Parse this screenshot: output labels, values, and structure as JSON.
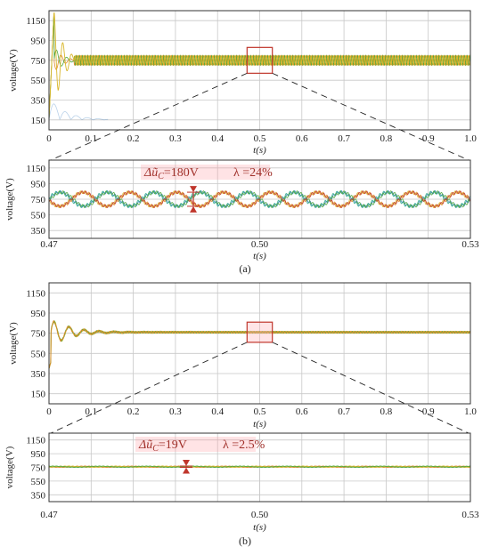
{
  "colors": {
    "green": "#4fa83a",
    "yellow": "#d9b72c",
    "orange": "#e08a2a",
    "blue": "#3a7fc0",
    "teal": "#2aa88a",
    "pink": "#ff9aa0",
    "red": "#c0362c",
    "grid": "#c8c8c8"
  },
  "captions": {
    "a": "(a)",
    "b": "(b)"
  },
  "chart_data": [
    {
      "id": "a-main",
      "type": "line",
      "ylabel": "voltage(V)",
      "xlabel": "t(s)",
      "xlim": [
        0,
        1.0
      ],
      "ylim": [
        50,
        1250
      ],
      "xticks": [
        "0",
        "0.1",
        "0.2",
        "0.3",
        "0.4",
        "0.5",
        "0.6",
        "0.7",
        "0.8",
        "0.9",
        "1.0"
      ],
      "yticks": [
        "150",
        "350",
        "550",
        "750",
        "950",
        "1150"
      ],
      "ytick_values": [
        150,
        350,
        550,
        750,
        950,
        1150
      ],
      "grid": true,
      "zoom_box_x": [
        0.47,
        0.53
      ],
      "signal": {
        "mean": 750,
        "ripple": 90,
        "startup_peak": 1250,
        "steady_band": [
          660,
          840
        ]
      }
    },
    {
      "id": "a-zoom",
      "type": "line",
      "ylabel": "voltage(V)",
      "xlabel": "t(s)",
      "xlim": [
        0.47,
        0.53
      ],
      "ylim": [
        250,
        1250
      ],
      "xticks": [
        "0.47",
        "0.50",
        "0.53"
      ],
      "yticks": [
        "350",
        "550",
        "750",
        "950",
        "1150"
      ],
      "ytick_values": [
        350,
        550,
        750,
        950,
        1150
      ],
      "grid": true,
      "annotation": {
        "delta_prefix": "Δũ",
        "delta_sub": "C",
        "delta_value": "=180V",
        "lambda": "λ =24%"
      },
      "signal": {
        "mean": 750,
        "amplitude": 90,
        "frequency_hz": 150,
        "min": 660,
        "max": 840
      }
    },
    {
      "id": "b-main",
      "type": "line",
      "ylabel": "voltage(V)",
      "xlabel": "t(s)",
      "xlim": [
        0,
        1.0
      ],
      "ylim": [
        50,
        1250
      ],
      "xticks": [
        "0",
        "0.1",
        "0.2",
        "0.3",
        "0.4",
        "0.5",
        "0.6",
        "0.7",
        "0.8",
        "0.9",
        "1.0"
      ],
      "yticks": [
        "150",
        "350",
        "550",
        "750",
        "950",
        "1150"
      ],
      "ytick_values": [
        150,
        350,
        550,
        750,
        950,
        1150
      ],
      "grid": true,
      "zoom_box_x": [
        0.47,
        0.53
      ],
      "signal": {
        "mean": 760,
        "ripple": 9.5,
        "startup_peak": 900,
        "startup_min": 400
      }
    },
    {
      "id": "b-zoom",
      "type": "line",
      "ylabel": "voltage(V)",
      "xlabel": "t(s)",
      "xlim": [
        0.47,
        0.53
      ],
      "ylim": [
        250,
        1250
      ],
      "xticks": [
        "0.47",
        "0.50",
        "0.53"
      ],
      "yticks": [
        "350",
        "550",
        "750",
        "950",
        "1150"
      ],
      "ytick_values": [
        350,
        550,
        750,
        950,
        1150
      ],
      "grid": true,
      "annotation": {
        "delta_prefix": "Δũ",
        "delta_sub": "C",
        "delta_value": "=19V",
        "lambda": "λ =2.5%"
      },
      "signal": {
        "mean": 760,
        "amplitude": 9.5,
        "min": 750,
        "max": 770
      }
    }
  ]
}
